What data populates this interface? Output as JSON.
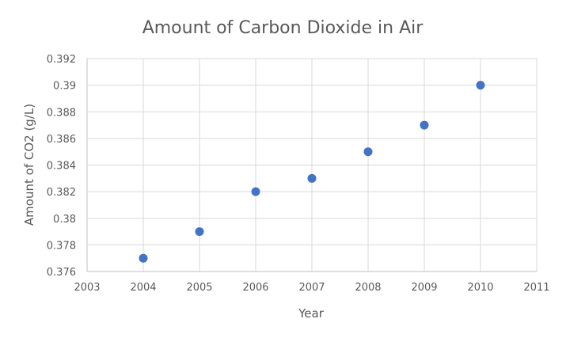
{
  "chart_data": {
    "type": "scatter",
    "title": "Amount of Carbon Dioxide in Air",
    "xlabel": "Year",
    "ylabel": "Amount of CO2 (g/L)",
    "xlim": [
      2003,
      2011
    ],
    "ylim": [
      0.376,
      0.392
    ],
    "x_ticks": [
      "2003",
      "2004",
      "2005",
      "2006",
      "2007",
      "2008",
      "2009",
      "2010",
      "2011"
    ],
    "y_ticks": [
      "0.376",
      "0.378",
      "0.38",
      "0.382",
      "0.384",
      "0.386",
      "0.388",
      "0.39",
      "0.392"
    ],
    "grid": true,
    "legend": "none",
    "marker_color": "#4472c4",
    "series": [
      {
        "x": [
          2004,
          2005,
          2006,
          2007,
          2008,
          2009,
          2010
        ],
        "y": [
          0.377,
          0.379,
          0.382,
          0.383,
          0.385,
          0.387,
          0.39
        ]
      }
    ]
  }
}
